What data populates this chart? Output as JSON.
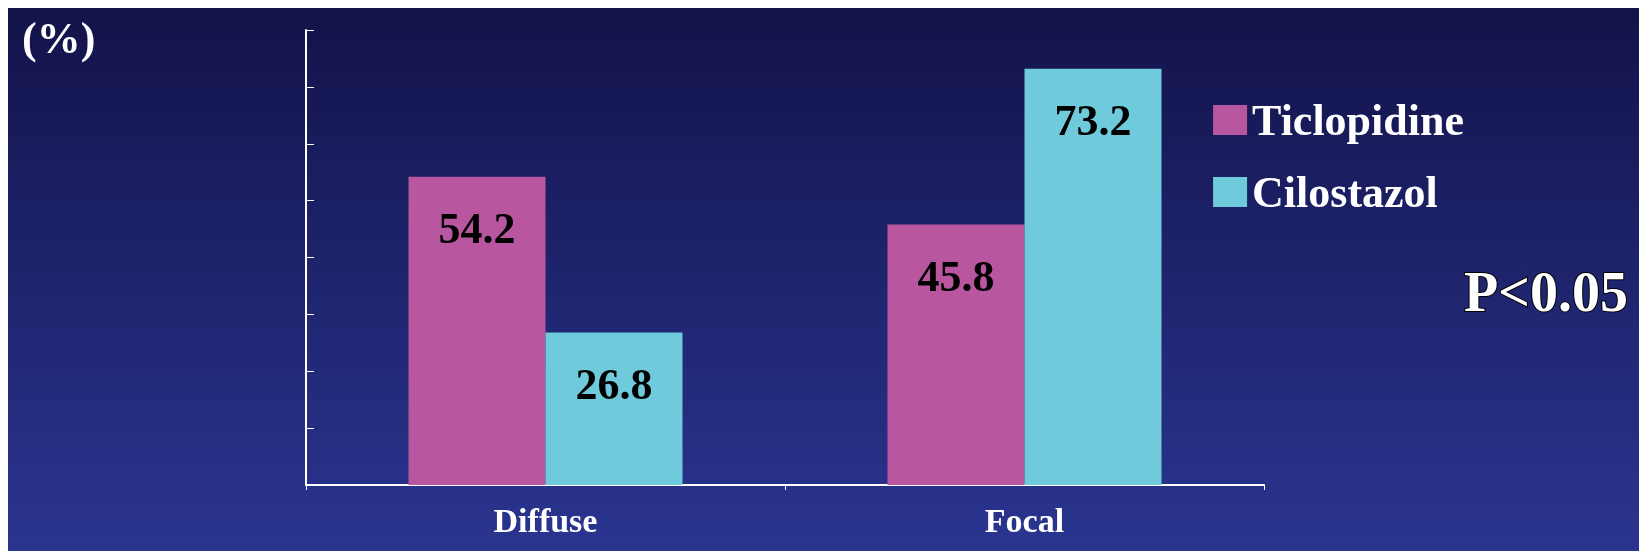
{
  "chart_data": {
    "type": "bar",
    "ylabel": "(%)",
    "categories": [
      "Diffuse",
      "Focal"
    ],
    "series": [
      {
        "name": "Ticlopidine",
        "color": "#b956a0",
        "values": [
          54.2,
          45.8
        ]
      },
      {
        "name": "Cilostazol",
        "color": "#6fcbdc",
        "values": [
          26.8,
          73.2
        ]
      }
    ],
    "ylim": [
      0,
      80
    ],
    "yticks": [
      {
        "value": 0,
        "label": null
      },
      {
        "value": 10,
        "label": null
      },
      {
        "value": 20,
        "label": null
      },
      {
        "value": 30,
        "label": null
      },
      {
        "value": 40,
        "label": null
      },
      {
        "value": 50,
        "label": null
      },
      {
        "value": 60,
        "label": null
      },
      {
        "value": 70,
        "label": null
      },
      {
        "value": 80,
        "label": null
      }
    ],
    "tick_labels": "x",
    "data_labels": true,
    "legend": "right",
    "grid": false,
    "annotations": [
      "P<0.05"
    ]
  }
}
